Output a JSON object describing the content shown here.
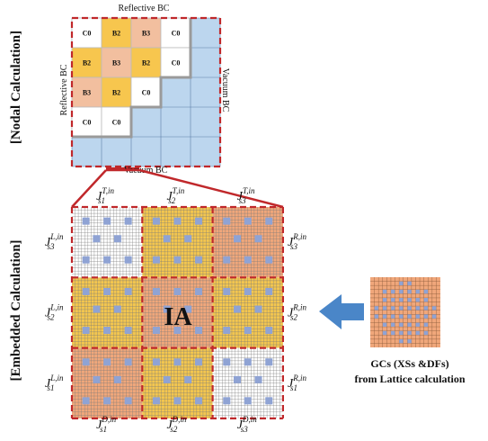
{
  "side_labels": {
    "nodal": "[Nodal Calculation]",
    "embedded": "[Embedded Calculation]"
  },
  "nodal": {
    "top_bc": "Reflective BC",
    "left_bc": "Reflective BC",
    "right_bc": "Vacuum BC",
    "bottom_bc": "Vacuum BC",
    "cells": [
      [
        "C0",
        "B2",
        "B3",
        "C0"
      ],
      [
        "B2",
        "B3",
        "B2",
        "C0"
      ],
      [
        "B3",
        "B2",
        "C0",
        ""
      ],
      [
        "C0",
        "C0",
        "",
        ""
      ]
    ]
  },
  "currents": {
    "top": [
      {
        "J": "J",
        "sub": "s1",
        "sup": "T,in"
      },
      {
        "J": "J",
        "sub": "s2",
        "sup": "T,in"
      },
      {
        "J": "J",
        "sub": "s3",
        "sup": "T,in"
      }
    ],
    "left": [
      {
        "J": "J",
        "sub": "s3",
        "sup": "L,in"
      },
      {
        "J": "J",
        "sub": "s2",
        "sup": "L,in"
      },
      {
        "J": "J",
        "sub": "s1",
        "sup": "L,in"
      }
    ],
    "right": [
      {
        "J": "J",
        "sub": "s3",
        "sup": "R,in"
      },
      {
        "J": "J",
        "sub": "s2",
        "sup": "R,in"
      },
      {
        "J": "J",
        "sub": "s1",
        "sup": "R,in"
      }
    ],
    "bottom": [
      {
        "J": "J",
        "sub": "s1",
        "sup": "D,in"
      },
      {
        "J": "J",
        "sub": "s2",
        "sup": "D,in"
      },
      {
        "J": "J",
        "sub": "s3",
        "sup": "D,in"
      }
    ]
  },
  "center_label": "IA",
  "gc_caption": {
    "line1": "GCs (XSs &DFs)",
    "line2": "from Lattice calculation"
  },
  "colors": {
    "C0": "#ffffff",
    "B2": "#f7c64e",
    "B3": "#f2bf9f",
    "vacuum": "#bcd6ee",
    "red_dash": "#c0282b",
    "yellow_assembly": "#f3c64f",
    "orange_assembly": "#f0a77b",
    "white_assembly": "#ffffff",
    "pin": "#8fa3d4",
    "arrow": "#4a86c8",
    "lattice": "#f0a77b",
    "lattice_pin": "#8fa3d4"
  },
  "embedded_assemblies": [
    [
      "white",
      "yellow",
      "orange"
    ],
    [
      "yellow",
      "orange",
      "yellow"
    ],
    [
      "orange",
      "yellow",
      "white"
    ]
  ]
}
